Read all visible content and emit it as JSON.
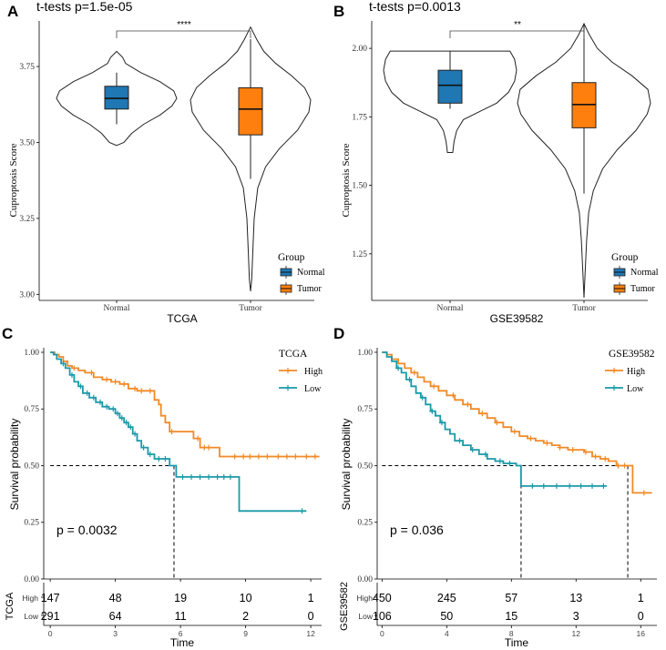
{
  "chart_data": [
    {
      "panel": "A",
      "type": "violin",
      "title": "t-tests p=1.5e-05",
      "xlabel": "TCGA",
      "ylabel": "Cuproptosis Score",
      "categories": [
        "Normal",
        "Tumor"
      ],
      "ylim": [
        2.98,
        3.9
      ],
      "yticks": [
        3.0,
        3.25,
        3.5,
        3.75
      ],
      "ytick_labels": [
        "3.00",
        "3.25",
        "3.50",
        "3.75"
      ],
      "significance": "****",
      "legend": {
        "title": "Group",
        "items": [
          "Normal",
          "Tumor"
        ],
        "position": "right"
      },
      "colors": {
        "Normal": "#1f77b4",
        "Tumor": "#ff7f0e"
      },
      "groups": [
        {
          "name": "Normal",
          "min": 3.49,
          "max": 3.8,
          "q1": 3.61,
          "median": 3.645,
          "q3": 3.685,
          "wlo": 3.56,
          "whi": 3.73,
          "profile": [
            [
              3.49,
              0.0
            ],
            [
              3.5,
              0.12
            ],
            [
              3.53,
              0.25
            ],
            [
              3.56,
              0.45
            ],
            [
              3.59,
              0.72
            ],
            [
              3.62,
              0.92
            ],
            [
              3.645,
              1.0
            ],
            [
              3.67,
              0.95
            ],
            [
              3.7,
              0.72
            ],
            [
              3.73,
              0.4
            ],
            [
              3.76,
              0.15
            ],
            [
              3.78,
              0.1
            ],
            [
              3.8,
              0.0
            ]
          ]
        },
        {
          "name": "Tumor",
          "min": 3.01,
          "max": 3.88,
          "q1": 3.525,
          "median": 3.61,
          "q3": 3.68,
          "wlo": 3.38,
          "whi": 3.84,
          "profile": [
            [
              3.01,
              0.0
            ],
            [
              3.05,
              0.02
            ],
            [
              3.15,
              0.04
            ],
            [
              3.25,
              0.06
            ],
            [
              3.35,
              0.12
            ],
            [
              3.42,
              0.25
            ],
            [
              3.48,
              0.48
            ],
            [
              3.54,
              0.78
            ],
            [
              3.6,
              0.97
            ],
            [
              3.64,
              1.0
            ],
            [
              3.68,
              0.9
            ],
            [
              3.72,
              0.68
            ],
            [
              3.76,
              0.42
            ],
            [
              3.8,
              0.22
            ],
            [
              3.84,
              0.1
            ],
            [
              3.88,
              0.0
            ]
          ]
        }
      ]
    },
    {
      "panel": "B",
      "type": "violin",
      "title": "t-tests p=0.0013",
      "xlabel": "GSE39582",
      "ylabel": "Cuproptosis Score",
      "categories": [
        "Normal",
        "Tumor"
      ],
      "ylim": [
        1.08,
        2.1
      ],
      "yticks": [
        1.25,
        1.5,
        1.75,
        2.0
      ],
      "ytick_labels": [
        "1.25",
        "1.50",
        "1.75",
        "2.00"
      ],
      "significance": "**",
      "legend": {
        "title": "Group",
        "items": [
          "Normal",
          "Tumor"
        ],
        "position": "right"
      },
      "colors": {
        "Normal": "#1f77b4",
        "Tumor": "#ff7f0e"
      },
      "groups": [
        {
          "name": "Normal",
          "min": 1.62,
          "max": 1.99,
          "q1": 1.8,
          "median": 1.865,
          "q3": 1.92,
          "wlo": 1.78,
          "whi": 1.99,
          "profile": [
            [
              1.62,
              0.04
            ],
            [
              1.66,
              0.06
            ],
            [
              1.7,
              0.1
            ],
            [
              1.74,
              0.2
            ],
            [
              1.77,
              0.45
            ],
            [
              1.8,
              0.7
            ],
            [
              1.84,
              0.88
            ],
            [
              1.88,
              0.97
            ],
            [
              1.92,
              1.0
            ],
            [
              1.96,
              0.97
            ],
            [
              1.99,
              0.9
            ]
          ]
        },
        {
          "name": "Tumor",
          "min": 1.09,
          "max": 2.09,
          "q1": 1.71,
          "median": 1.795,
          "q3": 1.875,
          "wlo": 1.47,
          "whi": 2.09,
          "profile": [
            [
              1.09,
              0.0
            ],
            [
              1.2,
              0.02
            ],
            [
              1.3,
              0.04
            ],
            [
              1.4,
              0.07
            ],
            [
              1.48,
              0.14
            ],
            [
              1.56,
              0.28
            ],
            [
              1.63,
              0.5
            ],
            [
              1.7,
              0.78
            ],
            [
              1.76,
              0.95
            ],
            [
              1.8,
              1.0
            ],
            [
              1.85,
              0.96
            ],
            [
              1.9,
              0.72
            ],
            [
              1.95,
              0.42
            ],
            [
              2.0,
              0.2
            ],
            [
              2.05,
              0.08
            ],
            [
              2.09,
              0.0
            ]
          ]
        }
      ]
    },
    {
      "panel": "C",
      "type": "line",
      "subtype": "kaplan-meier",
      "xlabel": "Time",
      "ylabel": "Survival probability",
      "xlim": [
        -0.3,
        12.5
      ],
      "ylim": [
        0,
        1.02
      ],
      "xticks": [
        0,
        3,
        6,
        9,
        12
      ],
      "yticks": [
        0,
        0.25,
        0.5,
        0.75,
        1.0
      ],
      "ytick_labels": [
        "0.00",
        "0.25",
        "0.50",
        "0.75",
        "1.00"
      ],
      "pvalue": "p = 0.0032",
      "median_line": {
        "y": 0.5,
        "x_end": 5.7
      },
      "legend": {
        "title": "TCGA",
        "items": [
          "High",
          "Low"
        ],
        "position": "top-right"
      },
      "series": [
        {
          "name": "High",
          "color": "#f28a26",
          "steps": [
            [
              0,
              1.0
            ],
            [
              0.2,
              0.99
            ],
            [
              0.4,
              0.98
            ],
            [
              0.6,
              0.96
            ],
            [
              0.8,
              0.94
            ],
            [
              1.0,
              0.93
            ],
            [
              1.3,
              0.92
            ],
            [
              1.6,
              0.91
            ],
            [
              2.0,
              0.89
            ],
            [
              2.4,
              0.88
            ],
            [
              2.8,
              0.87
            ],
            [
              3.2,
              0.86
            ],
            [
              3.6,
              0.84
            ],
            [
              4.0,
              0.83
            ],
            [
              4.4,
              0.83
            ],
            [
              4.8,
              0.79
            ],
            [
              5.0,
              0.77
            ],
            [
              5.1,
              0.72
            ],
            [
              5.3,
              0.69
            ],
            [
              5.5,
              0.65
            ],
            [
              6.4,
              0.65
            ],
            [
              6.6,
              0.62
            ],
            [
              6.9,
              0.58
            ],
            [
              7.6,
              0.58
            ],
            [
              7.8,
              0.54
            ],
            [
              12.4,
              0.54
            ]
          ],
          "censor": [
            1.1,
            1.9,
            2.6,
            3.0,
            3.4,
            3.9,
            4.2,
            4.6,
            5.6,
            6.8,
            7.1,
            7.3,
            8.5,
            8.9,
            9.2,
            9.6,
            10.0,
            10.5,
            10.9,
            11.3,
            11.8,
            12.2
          ]
        },
        {
          "name": "Low",
          "color": "#1a9aa8",
          "steps": [
            [
              0,
              1.0
            ],
            [
              0.15,
              0.99
            ],
            [
              0.3,
              0.97
            ],
            [
              0.5,
              0.95
            ],
            [
              0.7,
              0.93
            ],
            [
              0.9,
              0.9
            ],
            [
              1.1,
              0.87
            ],
            [
              1.3,
              0.85
            ],
            [
              1.5,
              0.82
            ],
            [
              1.8,
              0.8
            ],
            [
              2.1,
              0.78
            ],
            [
              2.4,
              0.76
            ],
            [
              2.7,
              0.75
            ],
            [
              3.0,
              0.73
            ],
            [
              3.2,
              0.71
            ],
            [
              3.4,
              0.69
            ],
            [
              3.6,
              0.67
            ],
            [
              3.8,
              0.64
            ],
            [
              4.0,
              0.61
            ],
            [
              4.2,
              0.58
            ],
            [
              4.5,
              0.55
            ],
            [
              4.8,
              0.53
            ],
            [
              5.5,
              0.5
            ],
            [
              5.8,
              0.45
            ],
            [
              8.6,
              0.45
            ],
            [
              8.7,
              0.3
            ],
            [
              11.8,
              0.3
            ]
          ],
          "censor": [
            0.6,
            1.0,
            1.4,
            1.7,
            2.0,
            2.3,
            2.6,
            2.9,
            3.1,
            3.3,
            3.5,
            3.7,
            3.9,
            4.3,
            4.6,
            5.0,
            5.3,
            6.1,
            6.5,
            6.9,
            7.3,
            7.7,
            8.0,
            8.3,
            11.6
          ]
        }
      ],
      "risk_table": {
        "title": "TCGA",
        "rows": [
          {
            "label": "High",
            "color": "#f28a26",
            "counts": [
              "147",
              "48",
              "19",
              "10",
              "1"
            ]
          },
          {
            "label": "Low",
            "color": "#1a9aa8",
            "counts": [
              "291",
              "64",
              "11",
              "2",
              "0"
            ]
          }
        ],
        "times": [
          0,
          3,
          6,
          9,
          12
        ],
        "tick_labels": [
          "0",
          "3",
          "6",
          "9",
          "12"
        ]
      }
    },
    {
      "panel": "D",
      "type": "line",
      "subtype": "kaplan-meier",
      "xlabel": "Time",
      "ylabel": "Survival probability",
      "xlim": [
        -0.3,
        17
      ],
      "ylim": [
        0,
        1.02
      ],
      "xticks": [
        0,
        4,
        8,
        12,
        16
      ],
      "yticks": [
        0,
        0.25,
        0.5,
        0.75,
        1.0
      ],
      "ytick_labels": [
        "0.00",
        "0.25",
        "0.50",
        "0.75",
        "1.00"
      ],
      "pvalue": "p = 0.036",
      "median_lines": [
        {
          "y": 0.5,
          "x_end": 8.6
        },
        {
          "y": 0.5,
          "x_end": 15.2
        }
      ],
      "legend": {
        "title": "GSE39582",
        "items": [
          "High",
          "Low"
        ],
        "position": "top-right"
      },
      "series": [
        {
          "name": "High",
          "color": "#f28a26",
          "steps": [
            [
              0,
              1.0
            ],
            [
              0.3,
              0.99
            ],
            [
              0.6,
              0.97
            ],
            [
              1.0,
              0.95
            ],
            [
              1.4,
              0.93
            ],
            [
              1.8,
              0.91
            ],
            [
              2.2,
              0.89
            ],
            [
              2.6,
              0.87
            ],
            [
              3.0,
              0.85
            ],
            [
              3.5,
              0.83
            ],
            [
              4.0,
              0.81
            ],
            [
              4.5,
              0.79
            ],
            [
              5.0,
              0.77
            ],
            [
              5.5,
              0.75
            ],
            [
              6.0,
              0.73
            ],
            [
              6.5,
              0.71
            ],
            [
              7.0,
              0.69
            ],
            [
              7.5,
              0.67
            ],
            [
              8.0,
              0.65
            ],
            [
              8.5,
              0.63
            ],
            [
              9.0,
              0.62
            ],
            [
              9.5,
              0.61
            ],
            [
              10.0,
              0.6
            ],
            [
              10.5,
              0.59
            ],
            [
              11.0,
              0.58
            ],
            [
              11.5,
              0.57
            ],
            [
              12.0,
              0.57
            ],
            [
              12.5,
              0.56
            ],
            [
              13.0,
              0.54
            ],
            [
              13.5,
              0.53
            ],
            [
              14.0,
              0.52
            ],
            [
              14.5,
              0.5
            ],
            [
              15.4,
              0.5
            ],
            [
              15.5,
              0.38
            ],
            [
              16.7,
              0.38
            ]
          ],
          "censor": [
            2.0,
            3.2,
            4.4,
            5.3,
            6.2,
            7.1,
            8.2,
            9.2,
            10.2,
            11.0,
            11.8,
            12.6,
            13.2,
            13.8,
            14.6,
            15.0,
            16.2
          ]
        },
        {
          "name": "Low",
          "color": "#1a9aa8",
          "steps": [
            [
              0,
              1.0
            ],
            [
              0.3,
              0.98
            ],
            [
              0.6,
              0.96
            ],
            [
              0.9,
              0.93
            ],
            [
              1.2,
              0.91
            ],
            [
              1.5,
              0.88
            ],
            [
              1.8,
              0.85
            ],
            [
              2.1,
              0.82
            ],
            [
              2.4,
              0.8
            ],
            [
              2.7,
              0.77
            ],
            [
              3.0,
              0.74
            ],
            [
              3.3,
              0.72
            ],
            [
              3.6,
              0.69
            ],
            [
              3.9,
              0.66
            ],
            [
              4.2,
              0.64
            ],
            [
              4.5,
              0.61
            ],
            [
              5.0,
              0.59
            ],
            [
              5.5,
              0.57
            ],
            [
              6.0,
              0.55
            ],
            [
              6.5,
              0.53
            ],
            [
              7.0,
              0.52
            ],
            [
              7.5,
              0.51
            ],
            [
              8.3,
              0.5
            ],
            [
              8.6,
              0.41
            ],
            [
              13.9,
              0.41
            ]
          ],
          "censor": [
            1.0,
            1.7,
            2.5,
            3.1,
            3.7,
            4.8,
            5.6,
            6.4,
            7.3,
            7.9,
            9.3,
            10.0,
            10.8,
            11.6,
            12.3,
            13.0,
            13.7
          ]
        }
      ],
      "risk_table": {
        "title": "GSE39582",
        "rows": [
          {
            "label": "High",
            "color": "#f28a26",
            "counts": [
              "450",
              "245",
              "57",
              "13",
              "1"
            ]
          },
          {
            "label": "Low",
            "color": "#1a9aa8",
            "counts": [
              "106",
              "50",
              "15",
              "3",
              "0"
            ]
          }
        ],
        "times": [
          0,
          4,
          8,
          12,
          16
        ],
        "tick_labels": [
          "0",
          "4",
          "8",
          "12",
          "16"
        ]
      }
    }
  ]
}
